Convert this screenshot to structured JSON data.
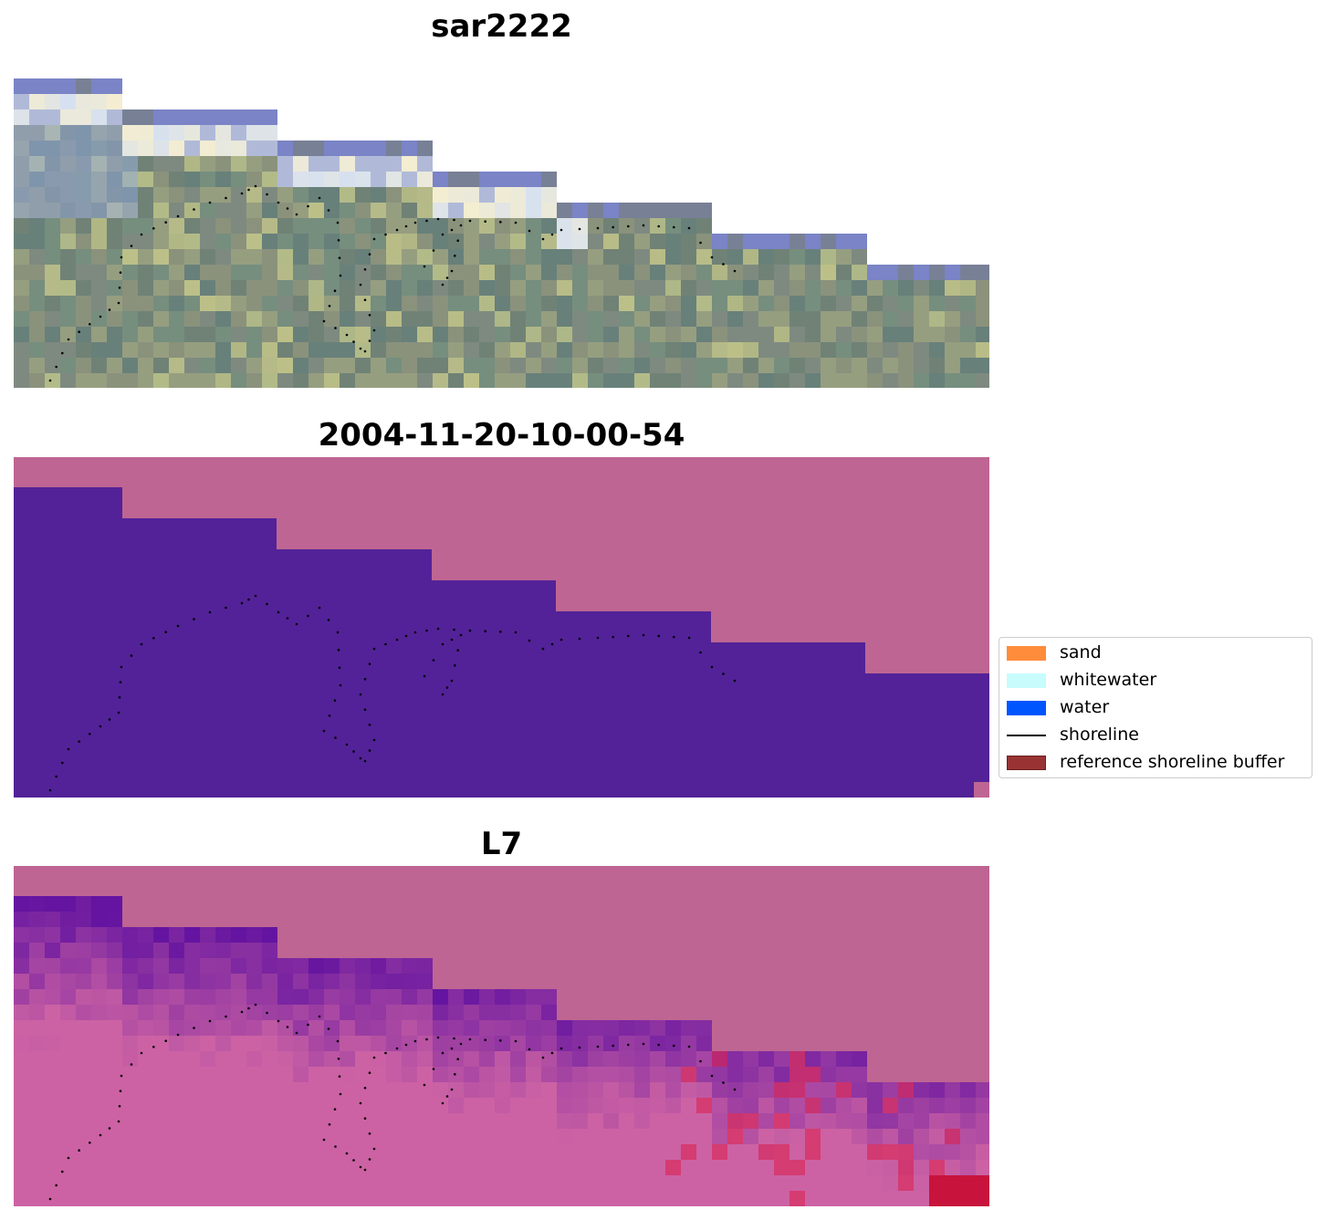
{
  "panels": [
    {
      "title": "sar2222",
      "kind": "rgb"
    },
    {
      "title": "2004-11-20-10-00-54",
      "kind": "classification"
    },
    {
      "title": "L7",
      "kind": "index"
    }
  ],
  "legend": {
    "items": [
      {
        "label": "sand",
        "color": "#ff8c3a",
        "type": "patch"
      },
      {
        "label": "whitewater",
        "color": "#c8fcfc",
        "type": "patch"
      },
      {
        "label": "water",
        "color": "#0055ff",
        "type": "patch"
      },
      {
        "label": "shoreline",
        "color": "#000000",
        "type": "line"
      },
      {
        "label": "reference shoreline buffer",
        "color": "#993333",
        "type": "patch",
        "edge": "#6b1f1f"
      }
    ]
  },
  "colors": {
    "masked": "#be6593",
    "water_class": "#532298",
    "shoreline_points": "#000000"
  }
}
